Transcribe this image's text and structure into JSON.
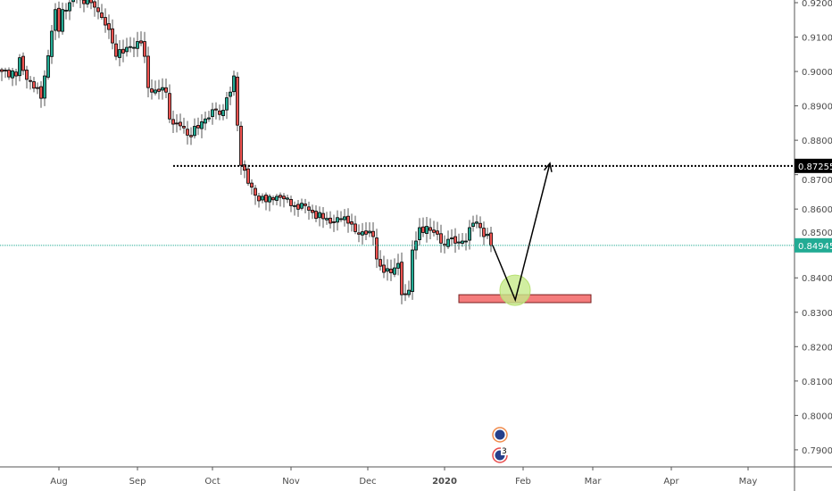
{
  "chart_data": {
    "type": "candlestick",
    "title": "",
    "colors": {
      "up": "#22ab94",
      "down": "#f05350",
      "outline": "#000000",
      "wick": "#555555",
      "current_price": "#22ab94",
      "level_line": "#000000",
      "zone": "#f47c7c",
      "target_circle": "#c5ea8a"
    },
    "ylim": [
      0.785,
      0.92
    ],
    "y_ticks": [
      "0.92000",
      "0.91000",
      "0.90000",
      "0.89000",
      "0.88000",
      "0.87000",
      "0.86000",
      "0.85000",
      "0.84000",
      "0.83000",
      "0.82000",
      "0.81000",
      "0.80000",
      "0.79000"
    ],
    "y_tick_values": [
      0.92,
      0.91,
      0.9,
      0.89,
      0.88,
      0.87,
      0.86,
      0.85,
      0.84,
      0.83,
      0.82,
      0.81,
      0.8,
      0.79
    ],
    "x_ticks": [
      {
        "label": "Aug",
        "index": 16
      },
      {
        "label": "Sep",
        "index": 38
      },
      {
        "label": "Oct",
        "index": 59
      },
      {
        "label": "Nov",
        "index": 81
      },
      {
        "label": "Dec",
        "index": 102.5
      },
      {
        "label": "2020",
        "index": 124,
        "bold": true
      },
      {
        "label": "Feb",
        "index": 146
      },
      {
        "label": "Mar",
        "index": 165.5
      },
      {
        "label": "Apr",
        "index": 187.5
      },
      {
        "label": "May",
        "index": 209
      }
    ],
    "close_keypoints": [
      [
        0,
        0.9
      ],
      [
        4,
        0.8987
      ],
      [
        5,
        0.904
      ],
      [
        7,
        0.8977
      ],
      [
        10,
        0.8952
      ],
      [
        11,
        0.8922
      ],
      [
        12,
        0.8987
      ],
      [
        14,
        0.9117
      ],
      [
        15,
        0.918
      ],
      [
        16,
        0.9117
      ],
      [
        17,
        0.918
      ],
      [
        19,
        0.92
      ],
      [
        20,
        0.9213
      ],
      [
        25,
        0.92
      ],
      [
        26,
        0.9187
      ],
      [
        27,
        0.9174
      ],
      [
        29,
        0.9135
      ],
      [
        30,
        0.9122
      ],
      [
        31,
        0.9083
      ],
      [
        32,
        0.9044
      ],
      [
        35,
        0.907
      ],
      [
        37,
        0.907
      ],
      [
        39,
        0.9083
      ],
      [
        40,
        0.9044
      ],
      [
        41,
        0.8953
      ],
      [
        42,
        0.894
      ],
      [
        45,
        0.8953
      ],
      [
        46,
        0.894
      ],
      [
        47,
        0.8862
      ],
      [
        49,
        0.8849
      ],
      [
        50,
        0.8842
      ],
      [
        51,
        0.8836
      ],
      [
        52,
        0.8815
      ],
      [
        55,
        0.8836
      ],
      [
        57,
        0.8862
      ],
      [
        60,
        0.8888
      ],
      [
        61,
        0.8875
      ],
      [
        64,
        0.894
      ],
      [
        65,
        0.8987
      ],
      [
        66,
        0.8844
      ],
      [
        67,
        0.8727
      ],
      [
        69,
        0.8675
      ],
      [
        72,
        0.8624
      ],
      [
        75,
        0.8637
      ],
      [
        77,
        0.8637
      ],
      [
        80,
        0.8632
      ],
      [
        82,
        0.861
      ],
      [
        85,
        0.861
      ],
      [
        87,
        0.859
      ],
      [
        90,
        0.8572
      ],
      [
        92,
        0.8559
      ],
      [
        95,
        0.8572
      ],
      [
        97,
        0.8559
      ],
      [
        100,
        0.8527
      ],
      [
        102,
        0.8527
      ],
      [
        104,
        0.852
      ],
      [
        105,
        0.8455
      ],
      [
        106,
        0.8434
      ],
      [
        107,
        0.8416
      ],
      [
        110,
        0.8429
      ],
      [
        111,
        0.8442
      ],
      [
        112,
        0.8351
      ],
      [
        114,
        0.8364
      ],
      [
        115,
        0.8481
      ],
      [
        116,
        0.8507
      ],
      [
        117,
        0.8546
      ],
      [
        120,
        0.8538
      ],
      [
        122,
        0.8527
      ],
      [
        124,
        0.8494
      ],
      [
        125,
        0.8512
      ],
      [
        127,
        0.8501
      ],
      [
        129,
        0.8507
      ],
      [
        130,
        0.8507
      ],
      [
        131,
        0.8546
      ],
      [
        132,
        0.8559
      ],
      [
        134,
        0.8546
      ],
      [
        135,
        0.852
      ],
      [
        136,
        0.8527
      ],
      [
        137,
        0.8494
      ]
    ],
    "current_price": {
      "value": 0.84945,
      "label": "0.84945"
    },
    "level_line": {
      "value": 0.87255,
      "label": "0.87255",
      "start_index": 48
    },
    "support_zone": {
      "start_index": 128,
      "end_index": 165,
      "top": 0.8351,
      "bottom": 0.8328
    },
    "target_circle": {
      "index": 143.75,
      "price": 0.8364
    },
    "projection_path": [
      [
        137.5,
        0.8494
      ],
      [
        143.8,
        0.8336
      ],
      [
        153.5,
        0.8733
      ]
    ],
    "events": [
      {
        "index": 139.5,
        "row": 0,
        "count": ""
      },
      {
        "index": 139.5,
        "row": 1,
        "count": "3"
      }
    ]
  }
}
